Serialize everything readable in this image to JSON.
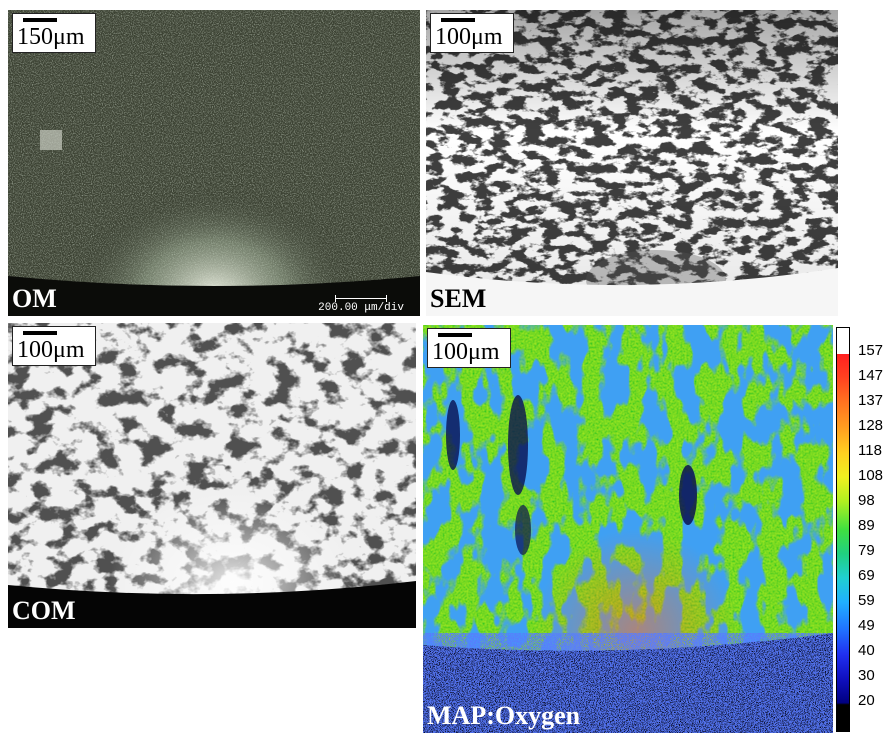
{
  "panels": {
    "om": {
      "scale_label": "150μm",
      "label": "OM",
      "instrument_scale": "200.00 μm/div"
    },
    "sem": {
      "scale_label": "100μm",
      "label": "SEM"
    },
    "com": {
      "scale_label": "100μm",
      "label": "COM"
    },
    "map": {
      "scale_label": "100μm",
      "label": "MAP:Oxygen"
    }
  },
  "colorbar": {
    "ticks": [
      "157",
      "147",
      "137",
      "128",
      "118",
      "108",
      "98",
      "89",
      "79",
      "69",
      "59",
      "49",
      "40",
      "30",
      "20"
    ]
  }
}
